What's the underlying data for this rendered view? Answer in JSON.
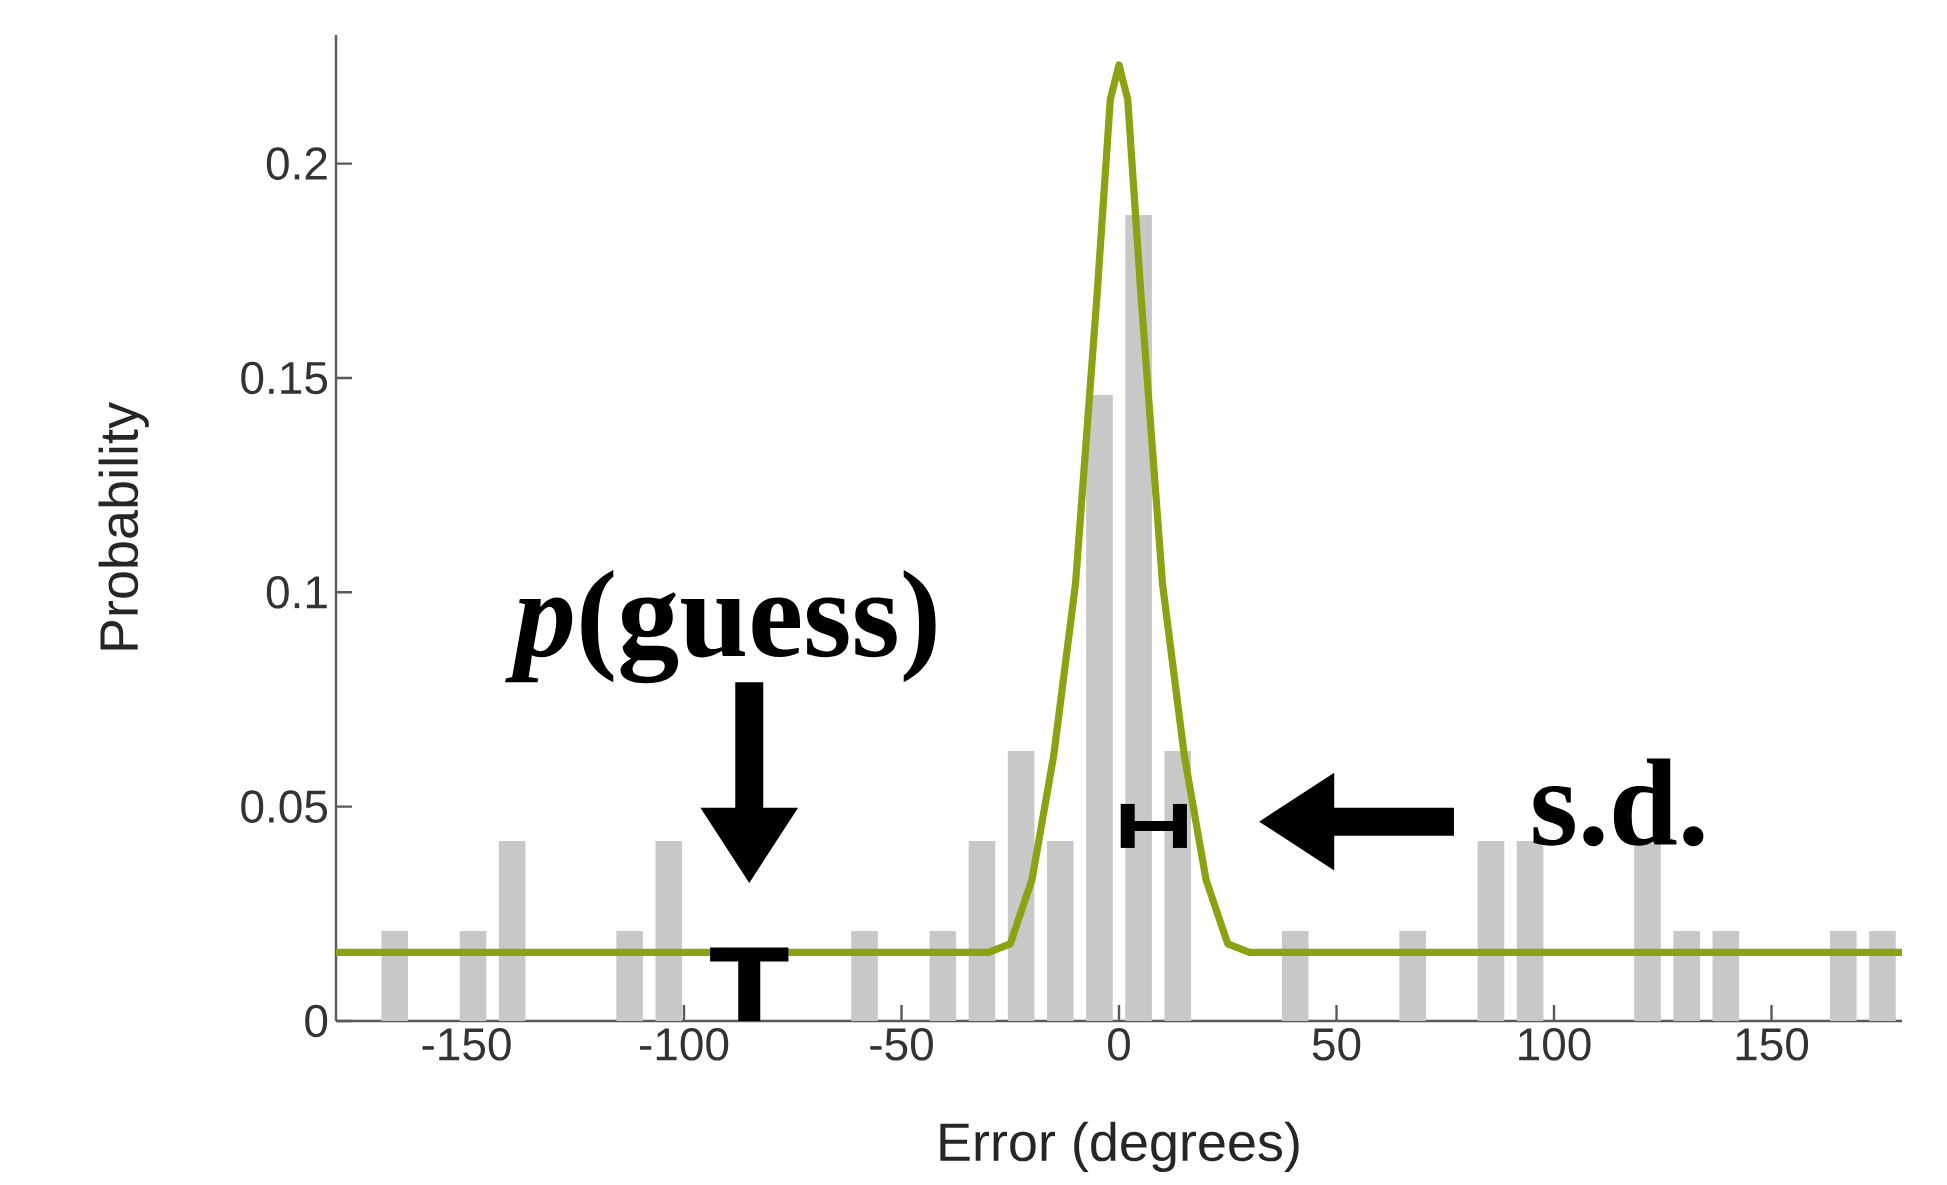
{
  "chart_data": {
    "type": "histogram",
    "xlabel": "Error (degrees)",
    "ylabel": "Probability",
    "bins": [
      -180,
      -171,
      -162,
      -153,
      -144,
      -135,
      -126,
      -117,
      -108,
      -99,
      -90,
      -81,
      -72,
      -63,
      -54,
      -45,
      -36,
      -27,
      -18,
      -9,
      0,
      9,
      18,
      27,
      36,
      45,
      54,
      63,
      72,
      81,
      90,
      99,
      108,
      117,
      126,
      135,
      144,
      153,
      162,
      171,
      180
    ],
    "values": [
      0,
      0.021,
      0,
      0.021,
      0.042,
      0,
      0,
      0.021,
      0.042,
      0,
      0,
      0,
      0,
      0.021,
      0,
      0.021,
      0.042,
      0.063,
      0.042,
      0.146,
      0.188,
      0.063,
      0,
      0,
      0.021,
      0,
      0,
      0.021,
      0,
      0.042,
      0.042,
      0,
      0,
      0.042,
      0.021,
      0.021,
      0,
      0,
      0.021,
      0.021
    ],
    "color": "#c8c8c8",
    "series": [
      {
        "type": "line",
        "color": "#8aa312",
        "x": [
          -180,
          -30,
          -25,
          -20,
          -15,
          -10,
          -5,
          -2,
          0,
          2,
          5,
          10,
          15,
          20,
          25,
          30,
          180
        ],
        "values": [
          0.016,
          0.016,
          0.018,
          0.033,
          0.062,
          0.102,
          0.17,
          0.215,
          0.223,
          0.215,
          0.17,
          0.102,
          0.062,
          0.033,
          0.018,
          0.016,
          0.016
        ]
      }
    ],
    "xlim": [
      -180,
      180
    ],
    "ylim": [
      0,
      0.23
    ],
    "xticks": [
      -150,
      -100,
      -50,
      0,
      50,
      100,
      150
    ],
    "yticks": [
      0,
      0.05,
      0.1,
      0.15,
      0.2
    ],
    "annotations": [
      "*p*(guess)",
      "s.d."
    ]
  }
}
